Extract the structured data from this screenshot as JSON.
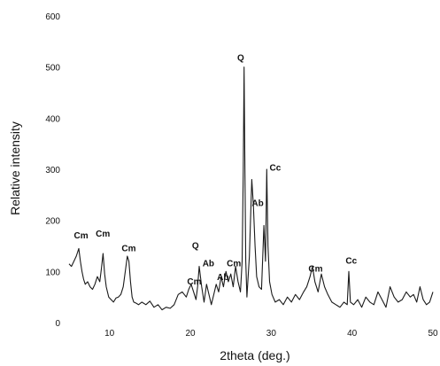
{
  "chart_data": {
    "type": "line",
    "xlabel": "2theta (deg.)",
    "ylabel": "Relative intensity",
    "xlim": [
      5,
      50
    ],
    "ylim": [
      0,
      600
    ],
    "xticks": [
      10,
      20,
      30,
      40,
      50
    ],
    "yticks": [
      0,
      100,
      200,
      300,
      400,
      500,
      600
    ],
    "grid": false,
    "line_color": "#1a1a1a",
    "series": [
      {
        "x": [
          5.0,
          5.3,
          5.6,
          5.9,
          6.2,
          6.4,
          6.6,
          6.8,
          7.0,
          7.3,
          7.6,
          7.9,
          8.2,
          8.5,
          8.8,
          9.0,
          9.2,
          9.4,
          9.6,
          9.9,
          10.2,
          10.5,
          10.8,
          11.1,
          11.4,
          11.7,
          12.0,
          12.2,
          12.4,
          12.6,
          12.8,
          13.0,
          13.3,
          13.6,
          14.0,
          14.5,
          15.0,
          15.5,
          16.0,
          16.5,
          17.0,
          17.5,
          18.0,
          18.5,
          19.0,
          19.5,
          19.8,
          20.1,
          20.4,
          20.7,
          20.9,
          21.1,
          21.4,
          21.7,
          22.0,
          22.3,
          22.6,
          22.9,
          23.2,
          23.5,
          23.8,
          24.1,
          24.4,
          24.7,
          25.0,
          25.3,
          25.6,
          25.9,
          26.2,
          26.4,
          26.55,
          26.65,
          26.75,
          26.85,
          27.0,
          27.3,
          27.6,
          27.8,
          28.0,
          28.2,
          28.5,
          28.8,
          29.1,
          29.3,
          29.45,
          29.6,
          29.8,
          30.1,
          30.5,
          31.0,
          31.5,
          32.0,
          32.5,
          33.0,
          33.5,
          34.0,
          34.4,
          34.8,
          35.1,
          35.4,
          35.8,
          36.2,
          36.6,
          37.0,
          37.5,
          38.0,
          38.5,
          39.0,
          39.4,
          39.6,
          39.8,
          40.2,
          40.7,
          41.2,
          41.7,
          42.2,
          42.7,
          43.2,
          43.7,
          44.2,
          44.7,
          45.2,
          45.7,
          46.2,
          46.7,
          47.2,
          47.6,
          48.0,
          48.4,
          48.8,
          49.2,
          49.6,
          50.0
        ],
        "y": [
          115,
          110,
          120,
          130,
          145,
          120,
          100,
          85,
          75,
          80,
          70,
          65,
          75,
          90,
          80,
          105,
          135,
          95,
          70,
          50,
          45,
          40,
          48,
          50,
          55,
          70,
          105,
          130,
          120,
          80,
          50,
          40,
          38,
          35,
          40,
          35,
          42,
          30,
          35,
          25,
          30,
          28,
          35,
          55,
          60,
          50,
          65,
          75,
          60,
          45,
          70,
          110,
          70,
          40,
          75,
          55,
          35,
          55,
          75,
          60,
          90,
          70,
          100,
          80,
          95,
          70,
          110,
          80,
          60,
          120,
          300,
          500,
          310,
          120,
          50,
          130,
          280,
          230,
          150,
          90,
          70,
          65,
          190,
          120,
          300,
          150,
          80,
          55,
          40,
          45,
          35,
          50,
          40,
          55,
          45,
          60,
          70,
          90,
          110,
          80,
          60,
          95,
          70,
          55,
          40,
          35,
          30,
          40,
          35,
          100,
          40,
          35,
          45,
          30,
          50,
          40,
          35,
          60,
          45,
          30,
          70,
          50,
          40,
          45,
          60,
          50,
          55,
          40,
          70,
          45,
          35,
          40,
          60
        ]
      }
    ],
    "annotations": [
      {
        "text": "Cm",
        "x": 5.6,
        "y": 165
      },
      {
        "text": "Cm",
        "x": 8.3,
        "y": 168
      },
      {
        "text": "Cm",
        "x": 11.5,
        "y": 140
      },
      {
        "text": "Q",
        "x": 20.2,
        "y": 145
      },
      {
        "text": "Ab",
        "x": 21.5,
        "y": 110
      },
      {
        "text": "Cm",
        "x": 19.6,
        "y": 75
      },
      {
        "text": "Ab",
        "x": 23.3,
        "y": 83
      },
      {
        "text": "Cm",
        "x": 24.5,
        "y": 110
      },
      {
        "text": "Q",
        "x": 25.8,
        "y": 512
      },
      {
        "text": "Ab",
        "x": 27.6,
        "y": 228
      },
      {
        "text": "Cc",
        "x": 29.8,
        "y": 297
      },
      {
        "text": "Cm",
        "x": 34.6,
        "y": 100
      },
      {
        "text": "Cc",
        "x": 39.2,
        "y": 115
      }
    ]
  }
}
